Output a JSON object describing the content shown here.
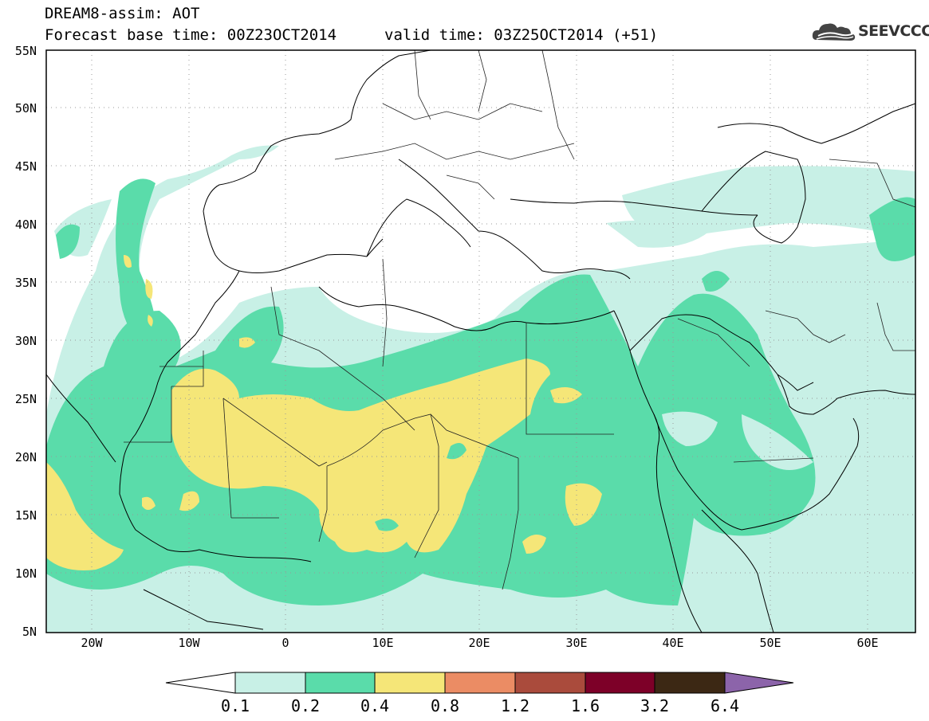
{
  "header": {
    "title_line1": "DREAM8-assim: AOT",
    "title_line2": "Forecast base time: 00Z23OCT2014",
    "valid_time": "valid time: 03Z25OCT2014 (+51)",
    "logo_text": "SEEVCCC"
  },
  "map": {
    "lat_labels": [
      "55N",
      "50N",
      "45N",
      "40N",
      "35N",
      "30N",
      "25N",
      "20N",
      "15N",
      "10N",
      "5N"
    ],
    "lon_labels": [
      "20W",
      "10W",
      "0",
      "10E",
      "20E",
      "30E",
      "40E",
      "50E",
      "60E"
    ],
    "extent": {
      "lon_min": -25,
      "lon_max": 65,
      "lat_min": 5,
      "lat_max": 55
    }
  },
  "colorbar": {
    "labels": [
      "0.1",
      "0.2",
      "0.4",
      "0.8",
      "1.2",
      "1.6",
      "3.2",
      "6.4"
    ],
    "colors": [
      "#c8f0e6",
      "#5adcaa",
      "#f5e678",
      "#eb8c64",
      "#aa4b3c",
      "#7d0028",
      "#3c2814",
      "#8c64aa"
    ]
  }
}
